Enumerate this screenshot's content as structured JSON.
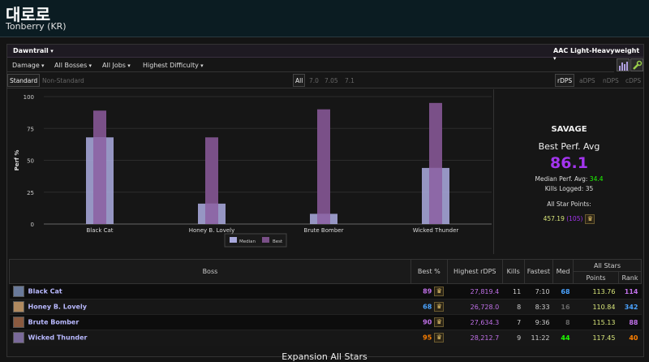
{
  "header": {
    "name": "대로로",
    "server": "Tonberry (KR)"
  },
  "top": {
    "expansion": "Dawntrail",
    "division": "AAC Light-Heavyweight"
  },
  "filters": {
    "metric": "Damage",
    "bosses": "All Bosses",
    "jobs": "All Jobs",
    "difficulty": "Highest Difficulty"
  },
  "tabs": {
    "standard": "Standard",
    "nonstandard": "Non-Standard",
    "patches": [
      "All",
      "7.0",
      "7.05",
      "7.1"
    ],
    "metrics": [
      "rDPS",
      "aDPS",
      "nDPS",
      "cDPS"
    ]
  },
  "chart_data": {
    "type": "bar",
    "categories": [
      "Black Cat",
      "Honey B. Lovely",
      "Brute Bomber",
      "Wicked Thunder"
    ],
    "series": [
      {
        "name": "Median",
        "values": [
          68,
          16,
          8,
          44
        ]
      },
      {
        "name": "Best",
        "values": [
          89,
          68,
          90,
          95
        ]
      }
    ],
    "ylabel": "Perf %",
    "ylim": [
      0,
      100
    ],
    "yticks": [
      "0",
      "25",
      "50",
      "75",
      "100"
    ],
    "colors": {
      "Median": "#a8a8dc",
      "Best": "#7a5088"
    },
    "legend": "bottom-center",
    "grid": true
  },
  "summary": {
    "difficulty": "SAVAGE",
    "best_label": "Best Perf. Avg",
    "best_value": "86.1",
    "median_label": "Median Perf. Avg:",
    "median_value": "34.4",
    "kills_label": "Kills Logged:",
    "kills_value": "35",
    "allstar_label": "All Star Points:",
    "allstar_points": "457.19",
    "allstar_rank": "(105)"
  },
  "table": {
    "headers": {
      "boss": "Boss",
      "best": "Best %",
      "highest": "Highest rDPS",
      "kills": "Kills",
      "fastest": "Fastest",
      "med": "Med",
      "allstars": "All Stars",
      "points": "Points",
      "rank": "Rank"
    },
    "rows": [
      {
        "boss": "Black Cat",
        "best": "89",
        "rdps": "27,819.4",
        "kills": "11",
        "fastest": "7:10",
        "med": "68",
        "points": "113.76",
        "rank": "114",
        "icon": "#6a7a9a"
      },
      {
        "boss": "Honey B. Lovely",
        "best": "68",
        "rdps": "26,728.0",
        "kills": "8",
        "fastest": "8:33",
        "med": "16",
        "points": "110.84",
        "rank": "342",
        "icon": "#b08a60"
      },
      {
        "boss": "Brute Bomber",
        "best": "90",
        "rdps": "27,634.3",
        "kills": "7",
        "fastest": "9:36",
        "med": "8",
        "points": "115.13",
        "rank": "88",
        "icon": "#8a5a40"
      },
      {
        "boss": "Wicked Thunder",
        "best": "95",
        "rdps": "28,212.7",
        "kills": "9",
        "fastest": "11:22",
        "med": "44",
        "points": "117.45",
        "rank": "40",
        "icon": "#7a6a9a"
      }
    ],
    "best_colors": [
      "#c070e8",
      "#4aa3ff",
      "#c070e8",
      "#ff8000"
    ],
    "med_colors": [
      "#4aa3ff",
      "#666666",
      "#666666",
      "#1eff00"
    ],
    "rank_colors": [
      "#c070e8",
      "#4aa3ff",
      "#c070e8",
      "#ff8000"
    ]
  },
  "footer": "Expansion All Stars"
}
